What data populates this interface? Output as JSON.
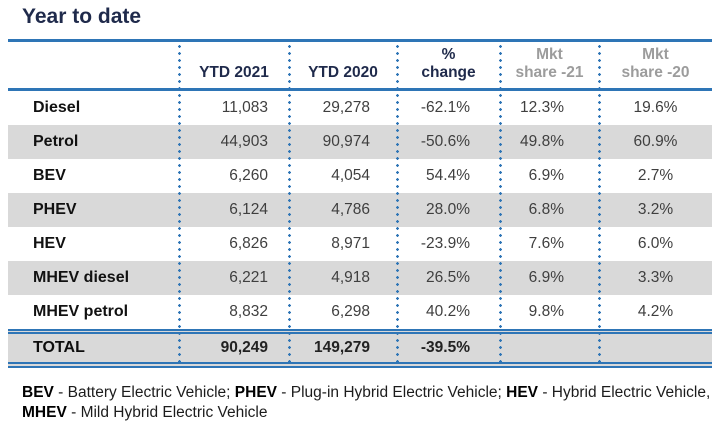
{
  "title": "Year to date",
  "colors": {
    "accent_blue": "#2E75B6",
    "navy_text": "#1F2A4B",
    "row_shade_gray": "#D9D9D9",
    "header_gray_text": "#9C9C9C",
    "value_text": "#3F3F3F"
  },
  "chart_data": {
    "type": "table",
    "columns": [
      {
        "id": "row-label",
        "label": "",
        "lines": [],
        "color": "navy"
      },
      {
        "id": "ytd-2021",
        "label": "YTD 2021",
        "lines": [
          "YTD 2021"
        ],
        "color": "navy"
      },
      {
        "id": "ytd-2020",
        "label": "YTD 2020",
        "lines": [
          "YTD 2020"
        ],
        "color": "navy"
      },
      {
        "id": "pct-change",
        "label": "% change",
        "lines": [
          "%",
          "change"
        ],
        "color": "navy"
      },
      {
        "id": "mkt-share-21",
        "label": "Mkt share -21",
        "lines": [
          "Mkt",
          "share -21"
        ],
        "color": "gray"
      },
      {
        "id": "mkt-share-20",
        "label": "Mkt share -20",
        "lines": [
          "Mkt",
          "share -20"
        ],
        "color": "gray"
      }
    ],
    "rows": [
      {
        "label": "Diesel",
        "values": [
          "11,083",
          "29,278",
          "-62.1%",
          "12.3%",
          "19.6%"
        ],
        "shaded": false
      },
      {
        "label": "Petrol",
        "values": [
          "44,903",
          "90,974",
          "-50.6%",
          "49.8%",
          "60.9%"
        ],
        "shaded": true
      },
      {
        "label": "BEV",
        "values": [
          "6,260",
          "4,054",
          "54.4%",
          "6.9%",
          "2.7%"
        ],
        "shaded": false
      },
      {
        "label": "PHEV",
        "values": [
          "6,124",
          "4,786",
          "28.0%",
          "6.8%",
          "3.2%"
        ],
        "shaded": true
      },
      {
        "label": "HEV",
        "values": [
          "6,826",
          "8,971",
          "-23.9%",
          "7.6%",
          "6.0%"
        ],
        "shaded": false
      },
      {
        "label": "MHEV diesel",
        "values": [
          "6,221",
          "4,918",
          "26.5%",
          "6.9%",
          "3.3%"
        ],
        "shaded": true
      },
      {
        "label": "MHEV petrol",
        "values": [
          "8,832",
          "6,298",
          "40.2%",
          "9.8%",
          "4.2%"
        ],
        "shaded": false
      }
    ],
    "total": {
      "label": "TOTAL",
      "values": [
        "90,249",
        "149,279",
        "-39.5%",
        "",
        ""
      ],
      "shaded": true
    }
  },
  "footnote": {
    "line1": [
      "BEV",
      " - Battery Electric Vehicle; ",
      "PHEV",
      " - Plug-in Hybrid Electric Vehicle; ",
      "HEV",
      " - Hybrid Electric Vehicle,"
    ],
    "line2": [
      "MHEV",
      " - Mild Hybrid Electric Vehicle"
    ]
  }
}
